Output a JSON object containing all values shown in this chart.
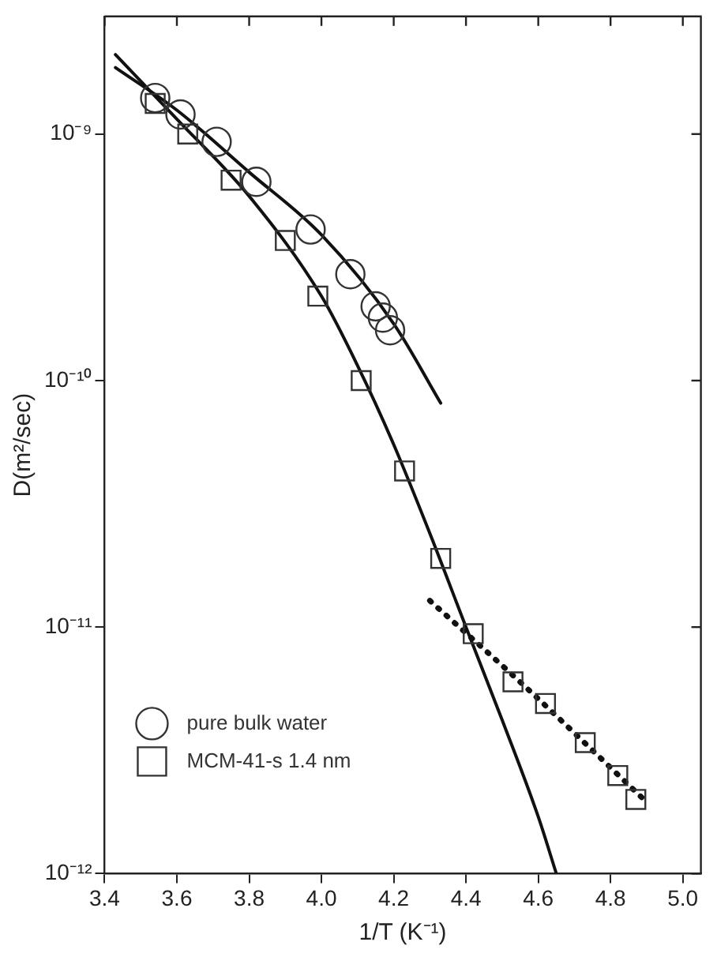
{
  "chart_data": {
    "type": "scatter",
    "xlabel": "1/T (K⁻¹)",
    "ylabel": "D(m²/sec)",
    "log": "y",
    "grid": false,
    "legend": "bottom left",
    "xlim": [
      3.4,
      5.05
    ],
    "xticks": [
      {
        "value": 3.4,
        "label": "3.4"
      },
      {
        "value": 3.6,
        "label": "3.6"
      },
      {
        "value": 3.8,
        "label": "3.8"
      },
      {
        "value": 4.0,
        "label": "4.0"
      },
      {
        "value": 4.2,
        "label": "4.2"
      },
      {
        "value": 4.4,
        "label": "4.4"
      },
      {
        "value": 4.6,
        "label": "4.6"
      },
      {
        "value": 4.8,
        "label": "4.8"
      },
      {
        "value": 5.0,
        "label": "5.0"
      }
    ],
    "ylim": [
      1e-12,
      3e-09
    ],
    "yticks": [
      {
        "value": 1e-12,
        "label": "10⁻¹²"
      },
      {
        "value": 1e-11,
        "label": "10⁻¹¹"
      },
      {
        "value": 1e-10,
        "label": "10⁻¹⁰"
      },
      {
        "value": 1e-09,
        "label": "10⁻⁹"
      }
    ],
    "series": [
      {
        "name": "pure bulk water",
        "marker": "circle",
        "color": "#333333",
        "x": [
          3.54,
          3.61,
          3.71,
          3.82,
          3.97,
          4.08,
          4.15,
          4.17,
          4.19
        ],
        "values": [
          1.4e-09,
          1.2e-09,
          9.3e-10,
          6.4e-10,
          4.1e-10,
          2.7e-10,
          2e-10,
          1.8e-10,
          1.6e-10
        ]
      },
      {
        "name": "MCM-41-s 1.4 nm",
        "marker": "square",
        "color": "#333333",
        "x": [
          3.54,
          3.63,
          3.75,
          3.9,
          3.99,
          4.11,
          4.23,
          4.33,
          4.42,
          4.53,
          4.62,
          4.73,
          4.82,
          4.87
        ],
        "values": [
          1.33e-09,
          1e-09,
          6.5e-10,
          3.7e-10,
          2.2e-10,
          1e-10,
          4.3e-11,
          1.9e-11,
          9.4e-12,
          6e-12,
          4.9e-12,
          3.4e-12,
          2.5e-12,
          2e-12
        ]
      },
      {
        "type": "line",
        "marker": "none",
        "line_style": "solid",
        "color": "#111111",
        "x": [
          3.43,
          3.6,
          3.8,
          4.0,
          4.2,
          4.33
        ],
        "values": [
          1.86e-09,
          1.25e-09,
          7e-10,
          3.9e-10,
          1.7e-10,
          8.1e-11
        ]
      },
      {
        "type": "line",
        "marker": "none",
        "line_style": "solid",
        "color": "#111111",
        "x": [
          3.43,
          3.6,
          3.8,
          4.0,
          4.1,
          4.2,
          4.3,
          4.4,
          4.5,
          4.6,
          4.65
        ],
        "values": [
          2.1e-09,
          1.15e-09,
          5.6e-10,
          2.2e-10,
          1.15e-10,
          5.5e-11,
          2.4e-11,
          1e-11,
          4.2e-12,
          1.7e-12,
          1e-12
        ]
      },
      {
        "type": "line",
        "marker": "none",
        "line_style": "dotted",
        "color": "#111111",
        "x": [
          4.3,
          4.56,
          4.9
        ],
        "values": [
          1.28e-11,
          5.8e-12,
          1.95e-12
        ]
      }
    ]
  }
}
